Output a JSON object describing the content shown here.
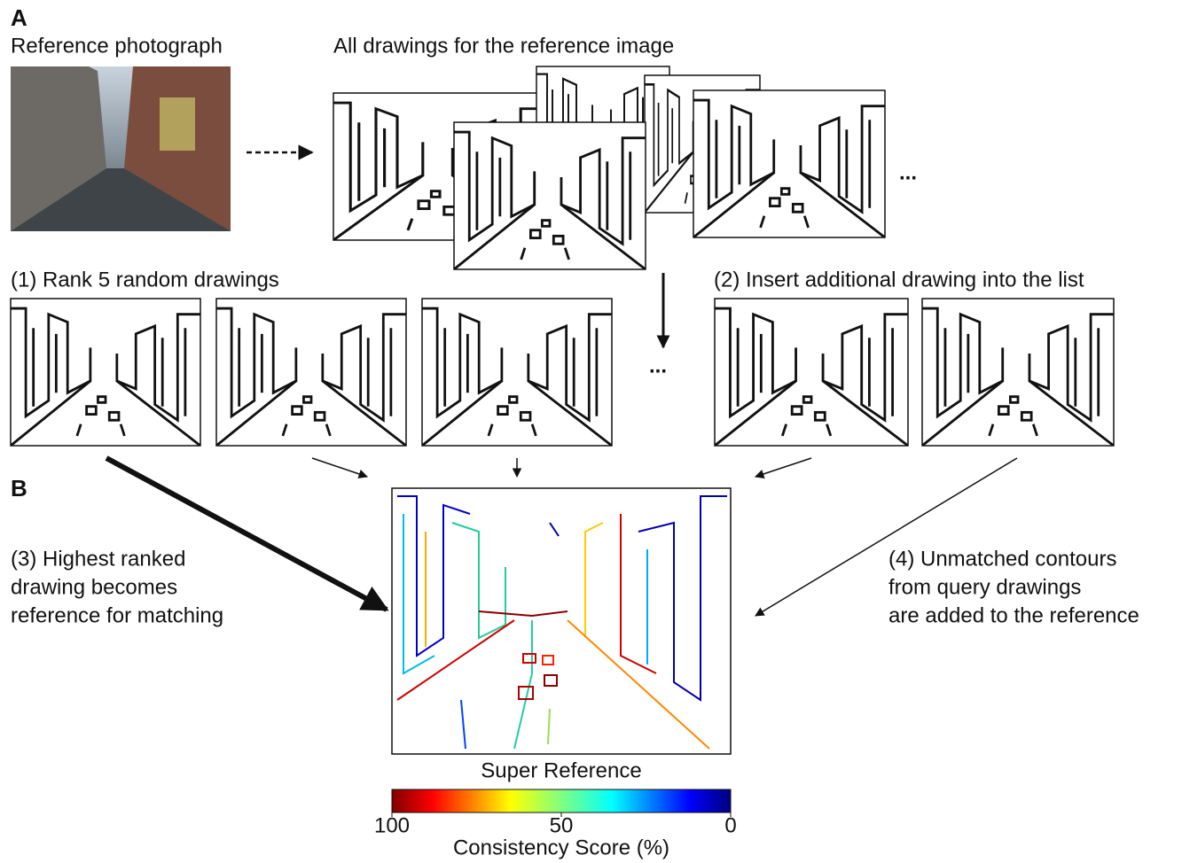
{
  "panel_a": {
    "label": "A",
    "reference_title": "Reference photograph",
    "drawings_title": "All drawings for the reference image",
    "ellipsis": "..."
  },
  "step1": {
    "label": "(1) Rank 5 random drawings",
    "ellipsis": "..."
  },
  "step2": {
    "label": "(2) Insert additional drawing into the list"
  },
  "panel_b": {
    "label": "B",
    "step3": [
      "(3) Highest ranked",
      "drawing becomes",
      "reference for matching"
    ],
    "step4": [
      "(4) Unmatched contours",
      "from query drawings",
      "are added to the reference"
    ],
    "super_reference": "Super Reference",
    "colorbar": {
      "label": "Consistency Score (%)",
      "lim": [
        100,
        0
      ],
      "ticks": [
        100,
        50,
        0
      ]
    }
  }
}
